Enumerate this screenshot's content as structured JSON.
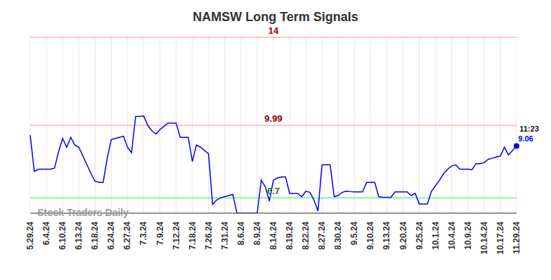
{
  "chart_data": {
    "type": "line",
    "title": "NAMSW Long Term Signals",
    "watermark": "Stock Traders Daily",
    "categories": [
      "5.29.24",
      null,
      null,
      null,
      "6.4.24",
      null,
      null,
      null,
      "6.10.24",
      null,
      null,
      null,
      "6.13.24",
      null,
      null,
      null,
      "6.18.24",
      null,
      null,
      null,
      "6.24.24",
      null,
      null,
      null,
      "6.27.24",
      null,
      null,
      null,
      "7.3.24",
      null,
      null,
      null,
      "7.9.24",
      null,
      null,
      null,
      "7.12.24",
      null,
      null,
      null,
      "7.18.24",
      null,
      null,
      null,
      "7.26.24",
      null,
      null,
      null,
      "7.31.24",
      null,
      null,
      null,
      "8.6.24",
      null,
      null,
      null,
      "8.9.24",
      null,
      null,
      null,
      "8.14.24",
      null,
      null,
      null,
      "8.19.24",
      null,
      null,
      null,
      "8.22.24",
      null,
      null,
      null,
      "8.27.24",
      null,
      null,
      null,
      "8.30.24",
      null,
      null,
      null,
      "9.5.24",
      null,
      null,
      null,
      "9.10.24",
      null,
      null,
      null,
      "9.13.24",
      null,
      null,
      null,
      "9.20.24",
      null,
      null,
      null,
      "9.25.24",
      null,
      null,
      null,
      "10.1.24",
      null,
      null,
      null,
      "10.4.24",
      null,
      null,
      null,
      "10.9.24",
      null,
      null,
      null,
      "10.14.24",
      null,
      null,
      null,
      "10.17.24",
      null,
      null,
      null,
      "11.29.24"
    ],
    "values": [
      9.55,
      7.9,
      8.0,
      8.0,
      8.0,
      8.0,
      8.05,
      8.8,
      9.4,
      9.0,
      9.45,
      9.1,
      9.0,
      8.6,
      8.2,
      7.8,
      7.45,
      7.4,
      7.4,
      8.5,
      9.35,
      9.4,
      9.45,
      9.5,
      9.0,
      8.75,
      10.4,
      10.4,
      10.42,
      10.0,
      9.75,
      9.6,
      9.8,
      9.95,
      10.1,
      10.1,
      10.1,
      9.45,
      9.45,
      9.45,
      8.35,
      9.1,
      9.0,
      8.85,
      8.7,
      6.4,
      6.6,
      6.7,
      6.75,
      6.8,
      6.85,
      6.0,
      6.0,
      6.0,
      6.0,
      6.0,
      6.0,
      7.5,
      7.2,
      6.55,
      7.5,
      7.6,
      7.65,
      7.65,
      6.9,
      6.9,
      6.9,
      6.75,
      7.0,
      6.95,
      6.6,
      6.1,
      8.2,
      8.2,
      8.2,
      6.75,
      6.8,
      6.95,
      7.0,
      6.98,
      6.97,
      6.97,
      6.97,
      7.4,
      7.4,
      7.4,
      6.75,
      6.72,
      6.72,
      6.72,
      6.97,
      6.97,
      6.97,
      6.97,
      6.8,
      6.9,
      6.42,
      6.42,
      6.42,
      7.0,
      7.25,
      7.5,
      7.8,
      8.0,
      8.15,
      8.2,
      8.0,
      8.0,
      8.0,
      7.98,
      8.25,
      8.25,
      8.3,
      8.45,
      8.5,
      8.55,
      8.6,
      9.0,
      8.65,
      8.85,
      9.06
    ],
    "color": "#0000ee",
    "ylim": [
      6,
      14
    ],
    "yticks": [
      6,
      8,
      10,
      12,
      14
    ],
    "grid": true,
    "tick_labels": "x",
    "reference_lines": [
      {
        "value": 14,
        "color": "#ffc4c4",
        "label_color": "#8b0000"
      },
      {
        "value": 9.99,
        "color": "#ffc4c4",
        "label_color": "#8b0000"
      },
      {
        "value": 6.7,
        "color": "#99ee99",
        "label_color": "#1a7a1a"
      }
    ],
    "last_point": {
      "time": "11:23",
      "value": 9.06,
      "time_color": "#111111",
      "value_color": "#0000ee"
    }
  }
}
